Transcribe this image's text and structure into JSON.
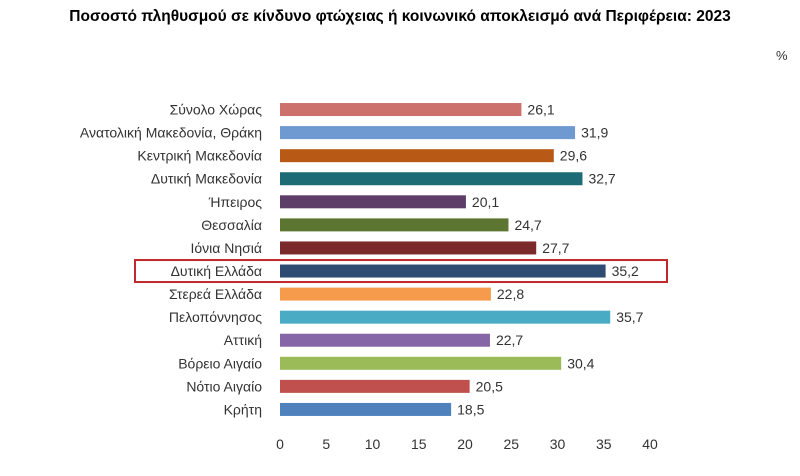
{
  "chart_data": {
    "type": "bar",
    "orientation": "horizontal",
    "title": "Ποσοστό πληθυσμού σε κίνδυνο φτώχειας ή κοινωνικό αποκλεισμό  ανά Περιφέρεια: 2023",
    "unit": "%",
    "categories": [
      "Σύνολο Χώρας",
      "Ανατολική Μακεδονία, Θράκη",
      "Κεντρική Μακεδονία",
      "Δυτική Μακεδονία",
      "Ήπειρος",
      "Θεσσαλία",
      "Ιόνια Νησιά",
      "Δυτική Ελλάδα",
      "Στερεά Ελλάδα",
      "Πελοπόννησος",
      "Αττική",
      "Βόρειο Αιγαίο",
      "Νότιο Αιγαίο",
      "Κρήτη"
    ],
    "values": [
      26.1,
      31.9,
      29.6,
      32.7,
      20.1,
      24.7,
      27.7,
      35.2,
      22.8,
      35.7,
      22.7,
      30.4,
      20.5,
      18.5
    ],
    "value_labels": [
      "26,1",
      "31,9",
      "29,6",
      "32,7",
      "20,1",
      "24,7",
      "27,7",
      "35,2",
      "22,8",
      "35,7",
      "22,7",
      "30,4",
      "20,5",
      "18,5"
    ],
    "colors": [
      "#cd716d",
      "#6f9ad1",
      "#b85a16",
      "#1d6b75",
      "#5e3d69",
      "#5c7530",
      "#7a2a2a",
      "#2e4b72",
      "#f59b4b",
      "#4aacc4",
      "#8766a8",
      "#9bbb59",
      "#c0504d",
      "#4f81bd"
    ],
    "highlight_category": "Δυτική Ελλάδα",
    "highlight_color": "#c0282a",
    "xlim": [
      0,
      40
    ],
    "xticks": [
      0,
      5,
      10,
      15,
      20,
      25,
      30,
      35,
      40
    ],
    "grid": false,
    "legend": "none"
  }
}
